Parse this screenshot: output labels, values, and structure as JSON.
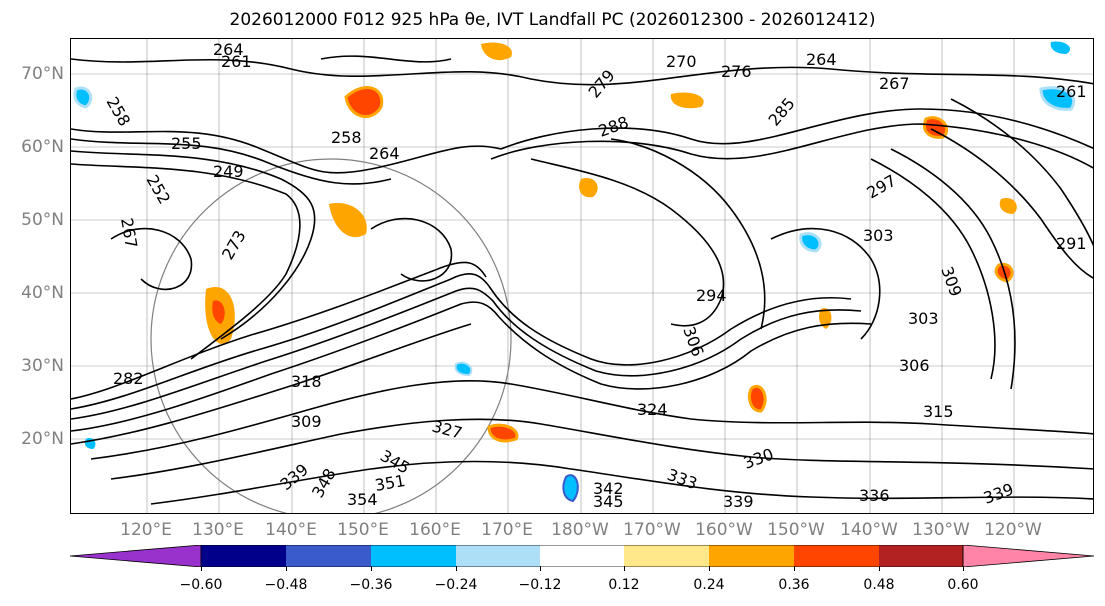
{
  "title": "2026012000 F012 925 hPa θe, IVT Landfall PC (2026012300 - 2026012412)",
  "map": {
    "lat_labels": [
      "70°N",
      "60°N",
      "50°N",
      "40°N",
      "30°N",
      "20°N"
    ],
    "lon_labels": [
      "120°E",
      "130°E",
      "140°E",
      "150°E",
      "160°E",
      "170°E",
      "180°W",
      "170°W",
      "160°W",
      "150°W",
      "140°W",
      "130°W",
      "120°W"
    ],
    "contour_labels": [
      "261",
      "264",
      "258",
      "255",
      "252",
      "249",
      "267",
      "258",
      "264",
      "270",
      "276",
      "279",
      "264",
      "267",
      "261",
      "288",
      "285",
      "297",
      "303",
      "291",
      "294",
      "306",
      "303",
      "309",
      "306",
      "315",
      "318",
      "324",
      "327",
      "330",
      "333",
      "339",
      "336",
      "339",
      "342",
      "345",
      "345",
      "348",
      "351",
      "354",
      "282",
      "273",
      "339",
      "309"
    ],
    "contour_color": "#000000",
    "coastline_color": "#000000",
    "grid_color": "#808080"
  },
  "colorbar": {
    "ticks": [
      "−0.60",
      "−0.48",
      "−0.36",
      "−0.24",
      "−0.12",
      "0.12",
      "0.24",
      "0.36",
      "0.48",
      "0.60"
    ],
    "colors": [
      "#9932CC",
      "#00008B",
      "#3A5BCC",
      "#00BFFF",
      "#ADDFF7",
      "#FFFFFF",
      "#FFE88A",
      "#FFA500",
      "#FF4500",
      "#B22222",
      "#FF85A8"
    ]
  }
}
